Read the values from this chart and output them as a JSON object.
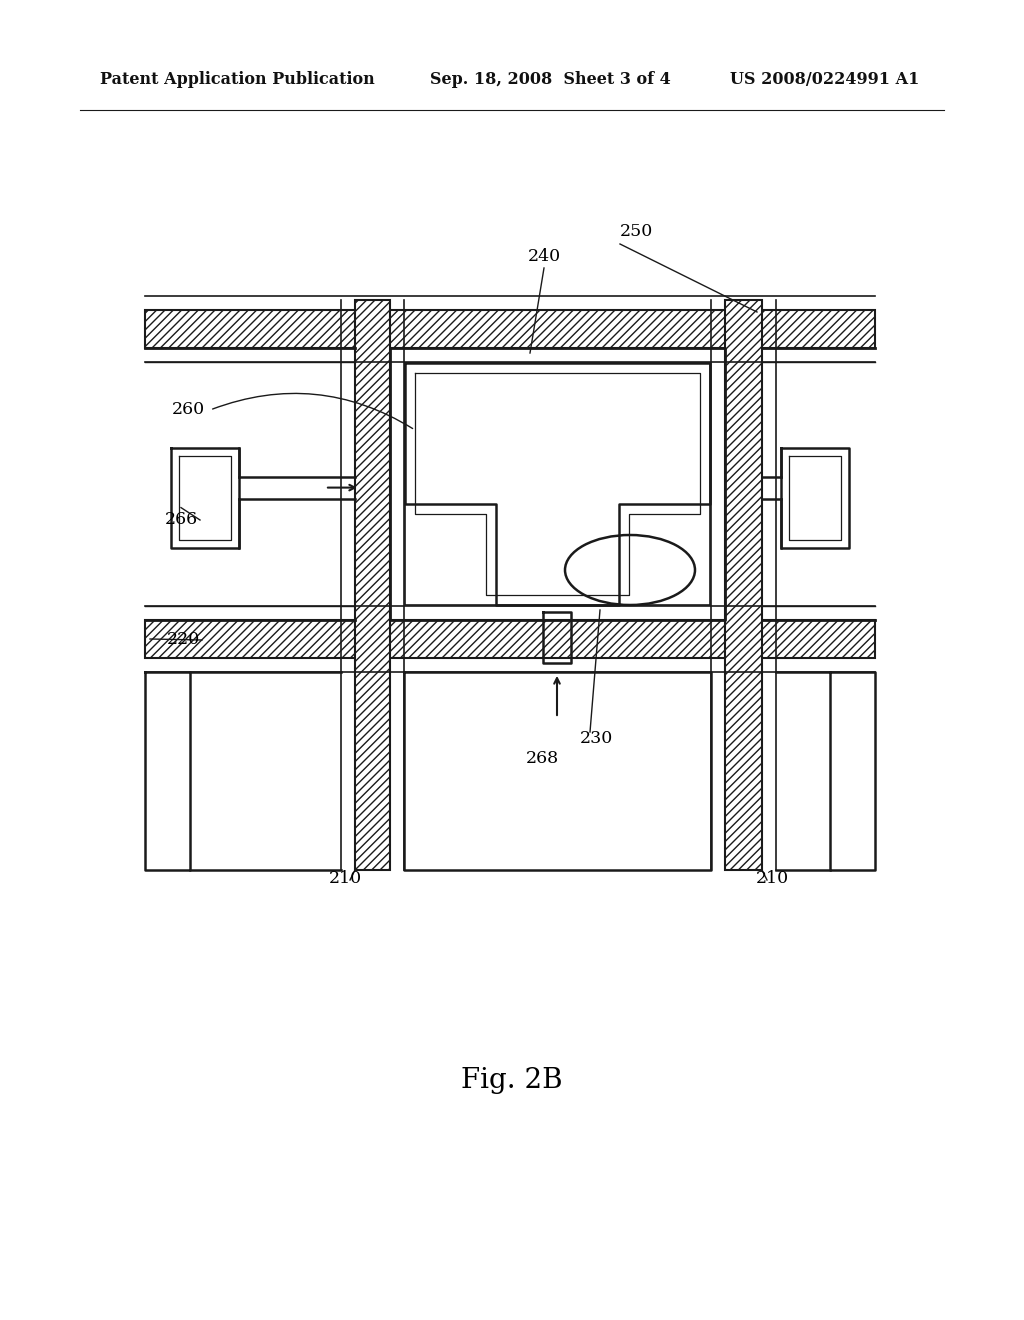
{
  "header_left": "Patent Application Publication",
  "header_mid": "Sep. 18, 2008  Sheet 3 of 4",
  "header_right": "US 2008/0224991 A1",
  "fig_label": "Fig. 2B",
  "bg_color": "#ffffff",
  "line_color": "#1a1a1a",
  "labels": {
    "210_left": "210",
    "210_right": "210",
    "220": "220",
    "230": "230",
    "240": "240",
    "250": "250",
    "260": "260",
    "266": "266",
    "268": "268"
  }
}
